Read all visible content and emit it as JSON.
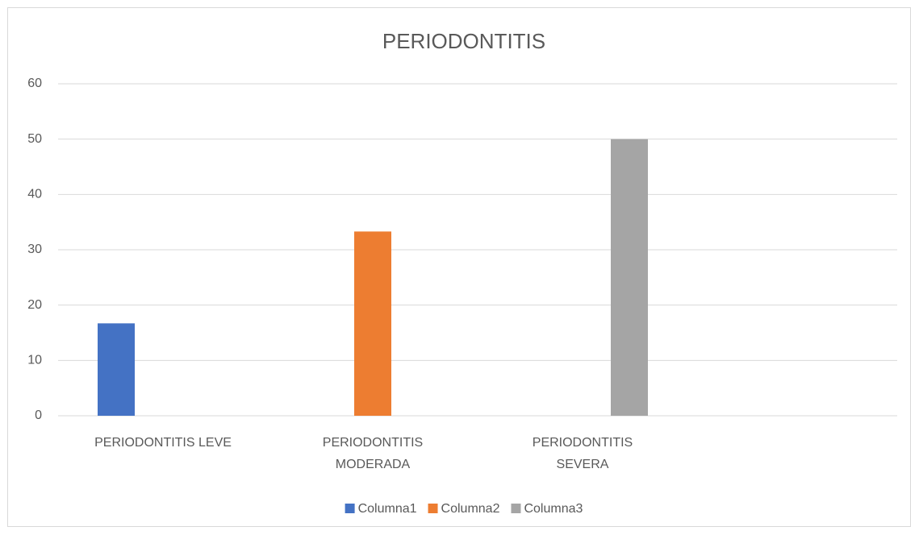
{
  "chart_data": {
    "type": "bar",
    "title": "PERIODONTITIS",
    "categories": [
      "PERIODONTITIS LEVE",
      "PERIODONTITIS MODERADA",
      "PERIODONTITIS SEVERA",
      null
    ],
    "series": [
      {
        "name": "Columna1",
        "color": "#4472c4",
        "values": [
          16.7,
          null,
          null,
          null
        ]
      },
      {
        "name": "Columna2",
        "color": "#ed7d31",
        "values": [
          null,
          33.3,
          null,
          null
        ]
      },
      {
        "name": "Columna3",
        "color": "#a5a5a5",
        "values": [
          null,
          null,
          50,
          null
        ]
      }
    ],
    "ylim": [
      0,
      60
    ],
    "yticks": [
      0,
      10,
      20,
      30,
      40,
      50,
      60
    ],
    "grid": true,
    "legend": "bottom"
  }
}
